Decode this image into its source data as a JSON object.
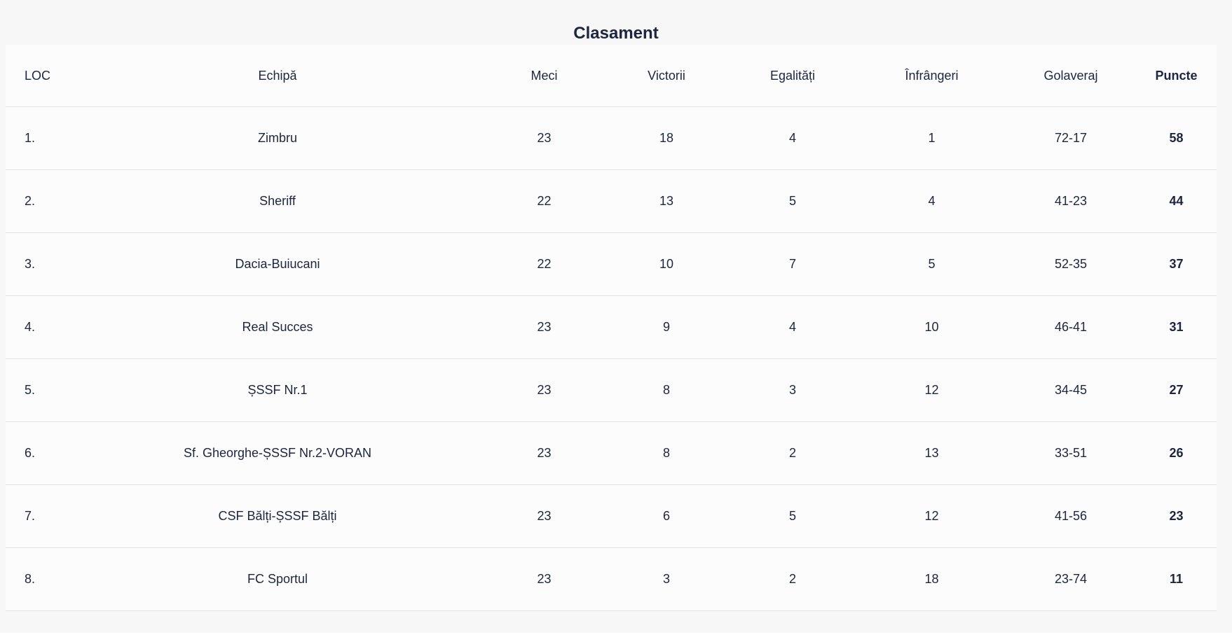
{
  "title": "Clasament",
  "headers": {
    "loc": "LOC",
    "team": "Echipă",
    "played": "Meci",
    "wins": "Victorii",
    "draws": "Egalități",
    "losses": "Înfrângeri",
    "goals": "Golaveraj",
    "points": "Puncte"
  },
  "rows": [
    {
      "loc": "1.",
      "team": "Zimbru",
      "played": "23",
      "wins": "18",
      "draws": "4",
      "losses": "1",
      "goals": "72-17",
      "points": "58"
    },
    {
      "loc": "2.",
      "team": "Sheriff",
      "played": "22",
      "wins": "13",
      "draws": "5",
      "losses": "4",
      "goals": "41-23",
      "points": "44"
    },
    {
      "loc": "3.",
      "team": "Dacia-Buiucani",
      "played": "22",
      "wins": "10",
      "draws": "7",
      "losses": "5",
      "goals": "52-35",
      "points": "37"
    },
    {
      "loc": "4.",
      "team": "Real Succes",
      "played": "23",
      "wins": "9",
      "draws": "4",
      "losses": "10",
      "goals": "46-41",
      "points": "31"
    },
    {
      "loc": "5.",
      "team": "ȘSSF Nr.1",
      "played": "23",
      "wins": "8",
      "draws": "3",
      "losses": "12",
      "goals": "34-45",
      "points": "27"
    },
    {
      "loc": "6.",
      "team": "Sf. Gheorghe-ȘSSF Nr.2-VORAN",
      "played": "23",
      "wins": "8",
      "draws": "2",
      "losses": "13",
      "goals": "33-51",
      "points": "26"
    },
    {
      "loc": "7.",
      "team": "CSF Bălți-ȘSSF Bălți",
      "played": "23",
      "wins": "6",
      "draws": "5",
      "losses": "12",
      "goals": "41-56",
      "points": "23"
    },
    {
      "loc": "8.",
      "team": "FC Sportul",
      "played": "23",
      "wins": "3",
      "draws": "2",
      "losses": "18",
      "goals": "23-74",
      "points": "11"
    }
  ]
}
